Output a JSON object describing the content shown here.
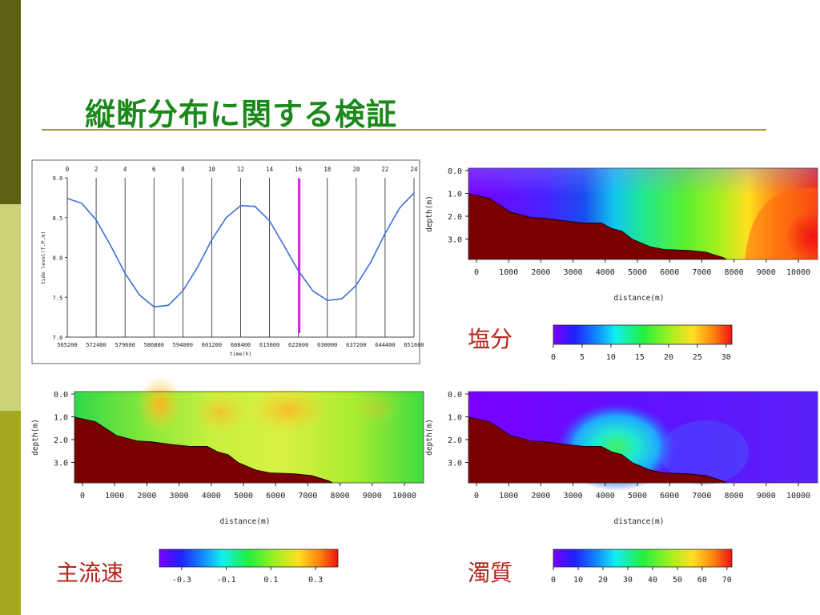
{
  "slide": {
    "title": "縦断分布に関する検証",
    "labels": {
      "salinity": "塩分",
      "velocity": "主流速",
      "turbidity": "濁質"
    },
    "colors": {
      "sidebar_dark": "#5f6112",
      "sidebar_light": "#cdd177",
      "sidebar_mid": "#a3a81f",
      "title": "#1b8a1b",
      "label": "#b5251b",
      "seabed": "#7a0000"
    }
  },
  "chart_data": [
    {
      "id": "tide",
      "type": "line",
      "ylabel": "tide level(T.P.m)",
      "xlabel": "time(h)",
      "ylim": [
        7.0,
        9.0
      ],
      "yticks": [
        "9.0",
        "8.5",
        "8.0",
        "7.5",
        "7.0"
      ],
      "top_ticks": [
        "0",
        "2",
        "4",
        "6",
        "8",
        "10",
        "12",
        "14",
        "16",
        "18",
        "20",
        "22",
        "24"
      ],
      "bottom_ticks": [
        "565200",
        "572400",
        "579600",
        "586800",
        "594000",
        "601200",
        "608400",
        "615600",
        "622800",
        "630000",
        "637200",
        "644400",
        "651600"
      ],
      "marker_hour": 16,
      "marker_color": "#e020e0",
      "line_color": "#3a6fd8",
      "series": [
        {
          "x": [
            0,
            1,
            2,
            3,
            4,
            5,
            6,
            7,
            8,
            9,
            10,
            11,
            12,
            13,
            14,
            15,
            16,
            17,
            18,
            19,
            20,
            21,
            22,
            23,
            24
          ],
          "values": [
            8.74,
            8.68,
            8.47,
            8.15,
            7.8,
            7.53,
            7.38,
            7.4,
            7.58,
            7.87,
            8.22,
            8.5,
            8.65,
            8.64,
            8.46,
            8.15,
            7.83,
            7.58,
            7.46,
            7.48,
            7.65,
            7.94,
            8.3,
            8.62,
            8.81
          ]
        }
      ]
    },
    {
      "id": "salinity",
      "type": "heatmap",
      "ylabel": "depth(m)",
      "xlabel": "distance(m)",
      "yticks": [
        "0.0",
        "1.0",
        "2.0",
        "3.0"
      ],
      "xticks": [
        "0",
        "1000",
        "2000",
        "3000",
        "4000",
        "5000",
        "6000",
        "7000",
        "8000",
        "9000",
        "10000"
      ],
      "colorbar_ticks": [
        "0",
        "5",
        "10",
        "15",
        "20",
        "25",
        "30"
      ],
      "colorbar_range": [
        0,
        31
      ]
    },
    {
      "id": "velocity",
      "type": "heatmap",
      "ylabel": "depth(m)",
      "xlabel": "distance(m)",
      "yticks": [
        "0.0",
        "1.0",
        "2.0",
        "3.0"
      ],
      "xticks": [
        "0",
        "1000",
        "2000",
        "3000",
        "4000",
        "5000",
        "6000",
        "7000",
        "8000",
        "9000",
        "10000"
      ],
      "colorbar_ticks": [
        "-0.3",
        "-0.1",
        "0.1",
        "0.3"
      ],
      "colorbar_range": [
        -0.4,
        0.4
      ]
    },
    {
      "id": "turbidity",
      "type": "heatmap",
      "ylabel": "depth(m)",
      "xlabel": "distance(m)",
      "yticks": [
        "0.0",
        "1.0",
        "2.0",
        "3.0"
      ],
      "xticks": [
        "0",
        "1000",
        "2000",
        "3000",
        "4000",
        "5000",
        "6000",
        "7000",
        "8000",
        "9000",
        "10000"
      ],
      "colorbar_ticks": [
        "0",
        "10",
        "20",
        "30",
        "40",
        "50",
        "60",
        "70"
      ],
      "colorbar_range": [
        0,
        72
      ]
    }
  ]
}
